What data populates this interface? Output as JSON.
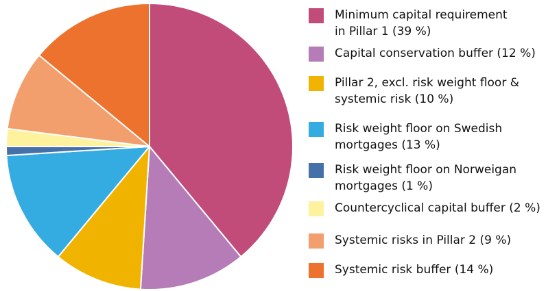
{
  "chart_data": {
    "type": "pie",
    "title": "",
    "legend_position": "right",
    "slices": [
      {
        "label": "Minimum capital requirement\nin Pillar 1 (39 %)",
        "value": 39,
        "color": "#C24C79"
      },
      {
        "label": "Capital conservation buffer (12 %)",
        "value": 12,
        "color": "#B57CB7"
      },
      {
        "label": "Pillar 2, excl. risk weight floor &\nsystemic risk (10 %)",
        "value": 10,
        "color": "#F0B400"
      },
      {
        "label": "Risk weight floor on Swedish\nmortgages (13 %)",
        "value": 13,
        "color": "#35ACE1"
      },
      {
        "label": "Risk weight floor on Norweigan\nmortgages (1 %)",
        "value": 1,
        "color": "#4670A8"
      },
      {
        "label": "Countercyclical capital buffer (2 %)",
        "value": 2,
        "color": "#FFF29F"
      },
      {
        "label": "Systemic risks in Pillar 2 (9 %)",
        "value": 9,
        "color": "#F29E6D"
      },
      {
        "label": "Systemic risk buffer (14 %)",
        "value": 14,
        "color": "#EC722E"
      }
    ]
  }
}
